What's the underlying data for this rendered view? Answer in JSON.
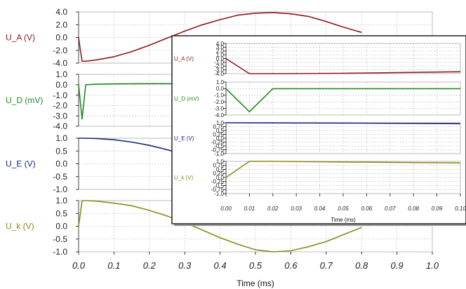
{
  "chart_data": [
    {
      "type": "line",
      "xlabel": "Time (ms)",
      "xlim": [
        0.0,
        1.0
      ],
      "xticks": [
        "0.0",
        "0.1",
        "0.2",
        "0.3",
        "0.4",
        "0.5",
        "0.6",
        "0.7",
        "0.8",
        "0.9",
        "1.0"
      ],
      "panels": [
        {
          "label": "U_A (V)",
          "color": "#8b1a1a",
          "ylim": [
            -4.0,
            4.0
          ],
          "yticks": [
            "4.0",
            "2.0",
            "0.0",
            "-2.0",
            "-4.0"
          ],
          "x": [
            0.0,
            0.005,
            0.01,
            0.02,
            0.05,
            0.1,
            0.15,
            0.2,
            0.25,
            0.3,
            0.35,
            0.4,
            0.45,
            0.5,
            0.55,
            0.6,
            0.65,
            0.7,
            0.75,
            0.8
          ],
          "y": [
            0.0,
            -2.0,
            -3.7,
            -3.7,
            -3.5,
            -3.0,
            -2.2,
            -1.2,
            -0.1,
            1.0,
            2.0,
            2.8,
            3.5,
            3.8,
            3.9,
            3.7,
            3.3,
            2.5,
            1.6,
            0.8
          ]
        },
        {
          "label": "U_D (mV)",
          "color": "#1e8c1e",
          "ylim": [
            -4.0,
            1.0
          ],
          "yticks": [
            "1.0",
            "0.0",
            "-1.0",
            "-2.0",
            "-3.0",
            "-4.0"
          ],
          "x": [
            0.0,
            0.005,
            0.01,
            0.02,
            0.05,
            0.1,
            0.2,
            0.3,
            0.4,
            0.5,
            0.6,
            0.7,
            0.8
          ],
          "y": [
            0.0,
            -1.7,
            -3.3,
            0.0,
            0.05,
            0.08,
            0.1,
            0.1,
            0.05,
            0.0,
            -0.05,
            -0.1,
            -0.15
          ]
        },
        {
          "label": "U_E (V)",
          "color": "#1a237e",
          "ylim": [
            -1.0,
            1.0
          ],
          "yticks": [
            "1.0",
            "0.5",
            "0.0",
            "-0.5",
            "-1.0"
          ],
          "x": [
            0.0,
            0.05,
            0.1,
            0.15,
            0.2,
            0.25,
            0.3,
            0.35,
            0.4,
            0.45,
            0.5,
            0.55,
            0.6,
            0.7,
            0.8
          ],
          "y": [
            1.0,
            0.99,
            0.94,
            0.85,
            0.72,
            0.55,
            0.36,
            0.15,
            -0.05,
            -0.25,
            -0.42,
            -0.58,
            -0.72,
            -0.9,
            -1.0
          ]
        },
        {
          "label": "U_k (V)",
          "color": "#8a8a1a",
          "ylim": [
            -1.0,
            1.0
          ],
          "yticks": [
            "1.0",
            "0.5",
            "0.0",
            "-0.5",
            "-1.0"
          ],
          "x": [
            0.0,
            0.005,
            0.01,
            0.02,
            0.05,
            0.1,
            0.15,
            0.2,
            0.25,
            0.3,
            0.35,
            0.4,
            0.45,
            0.5,
            0.55,
            0.6,
            0.65,
            0.7,
            0.75,
            0.8
          ],
          "y": [
            0.0,
            0.5,
            1.0,
            1.0,
            0.98,
            0.9,
            0.8,
            0.62,
            0.4,
            0.15,
            -0.15,
            -0.45,
            -0.7,
            -0.92,
            -1.0,
            -0.96,
            -0.8,
            -0.6,
            -0.32,
            -0.05
          ]
        }
      ]
    },
    {
      "type": "line",
      "xlabel": "Time (ms)",
      "xlim": [
        0.0,
        0.1
      ],
      "xticks": [
        "0.00",
        "0.01",
        "0.02",
        "0.03",
        "0.04",
        "0.05",
        "0.06",
        "0.07",
        "0.08",
        "0.09",
        "0.10"
      ],
      "panels": [
        {
          "label": "U_A (V)",
          "color": "#8b1a1a",
          "ylim": [
            -4.0,
            4.0
          ],
          "yticks": [
            "4.0",
            "3.0",
            "2.0",
            "1.0",
            "0.0",
            "-1.0",
            "-2.0",
            "-3.0",
            "-4.0"
          ],
          "x": [
            0.0,
            0.01,
            0.02,
            0.05,
            0.1
          ],
          "y": [
            0.0,
            -4.0,
            -4.0,
            -3.9,
            -3.5
          ]
        },
        {
          "label": "U_D (mV)",
          "color": "#1e8c1e",
          "ylim": [
            -4.0,
            1.0
          ],
          "yticks": [
            "1.0",
            "0.0",
            "-1.0",
            "-2.0",
            "-3.0",
            "-4.0"
          ],
          "x": [
            0.0,
            0.01,
            0.02,
            0.05,
            0.1
          ],
          "y": [
            0.0,
            -3.5,
            0.0,
            0.0,
            0.0
          ]
        },
        {
          "label": "U_E (V)",
          "color": "#1a237e",
          "ylim": [
            -1.0,
            1.0
          ],
          "yticks": [
            "1.0",
            "0.75",
            "0.5",
            "0.25",
            "0.0",
            "-0.25",
            "-0.5",
            "-0.75",
            "-1.0"
          ],
          "x": [
            0.0,
            0.05,
            0.1
          ],
          "y": [
            1.0,
            0.98,
            0.94
          ]
        },
        {
          "label": "U_k (V)",
          "color": "#8a8a1a",
          "ylim": [
            -1.0,
            1.0
          ],
          "yticks": [
            "1.0",
            "0.75",
            "0.5",
            "0.25",
            "0.0",
            "-0.25",
            "-0.5",
            "-0.75",
            "-1.0"
          ],
          "x": [
            0.0,
            0.01,
            0.02,
            0.05,
            0.1
          ],
          "y": [
            0.0,
            1.0,
            1.0,
            0.96,
            0.9
          ]
        }
      ]
    }
  ]
}
